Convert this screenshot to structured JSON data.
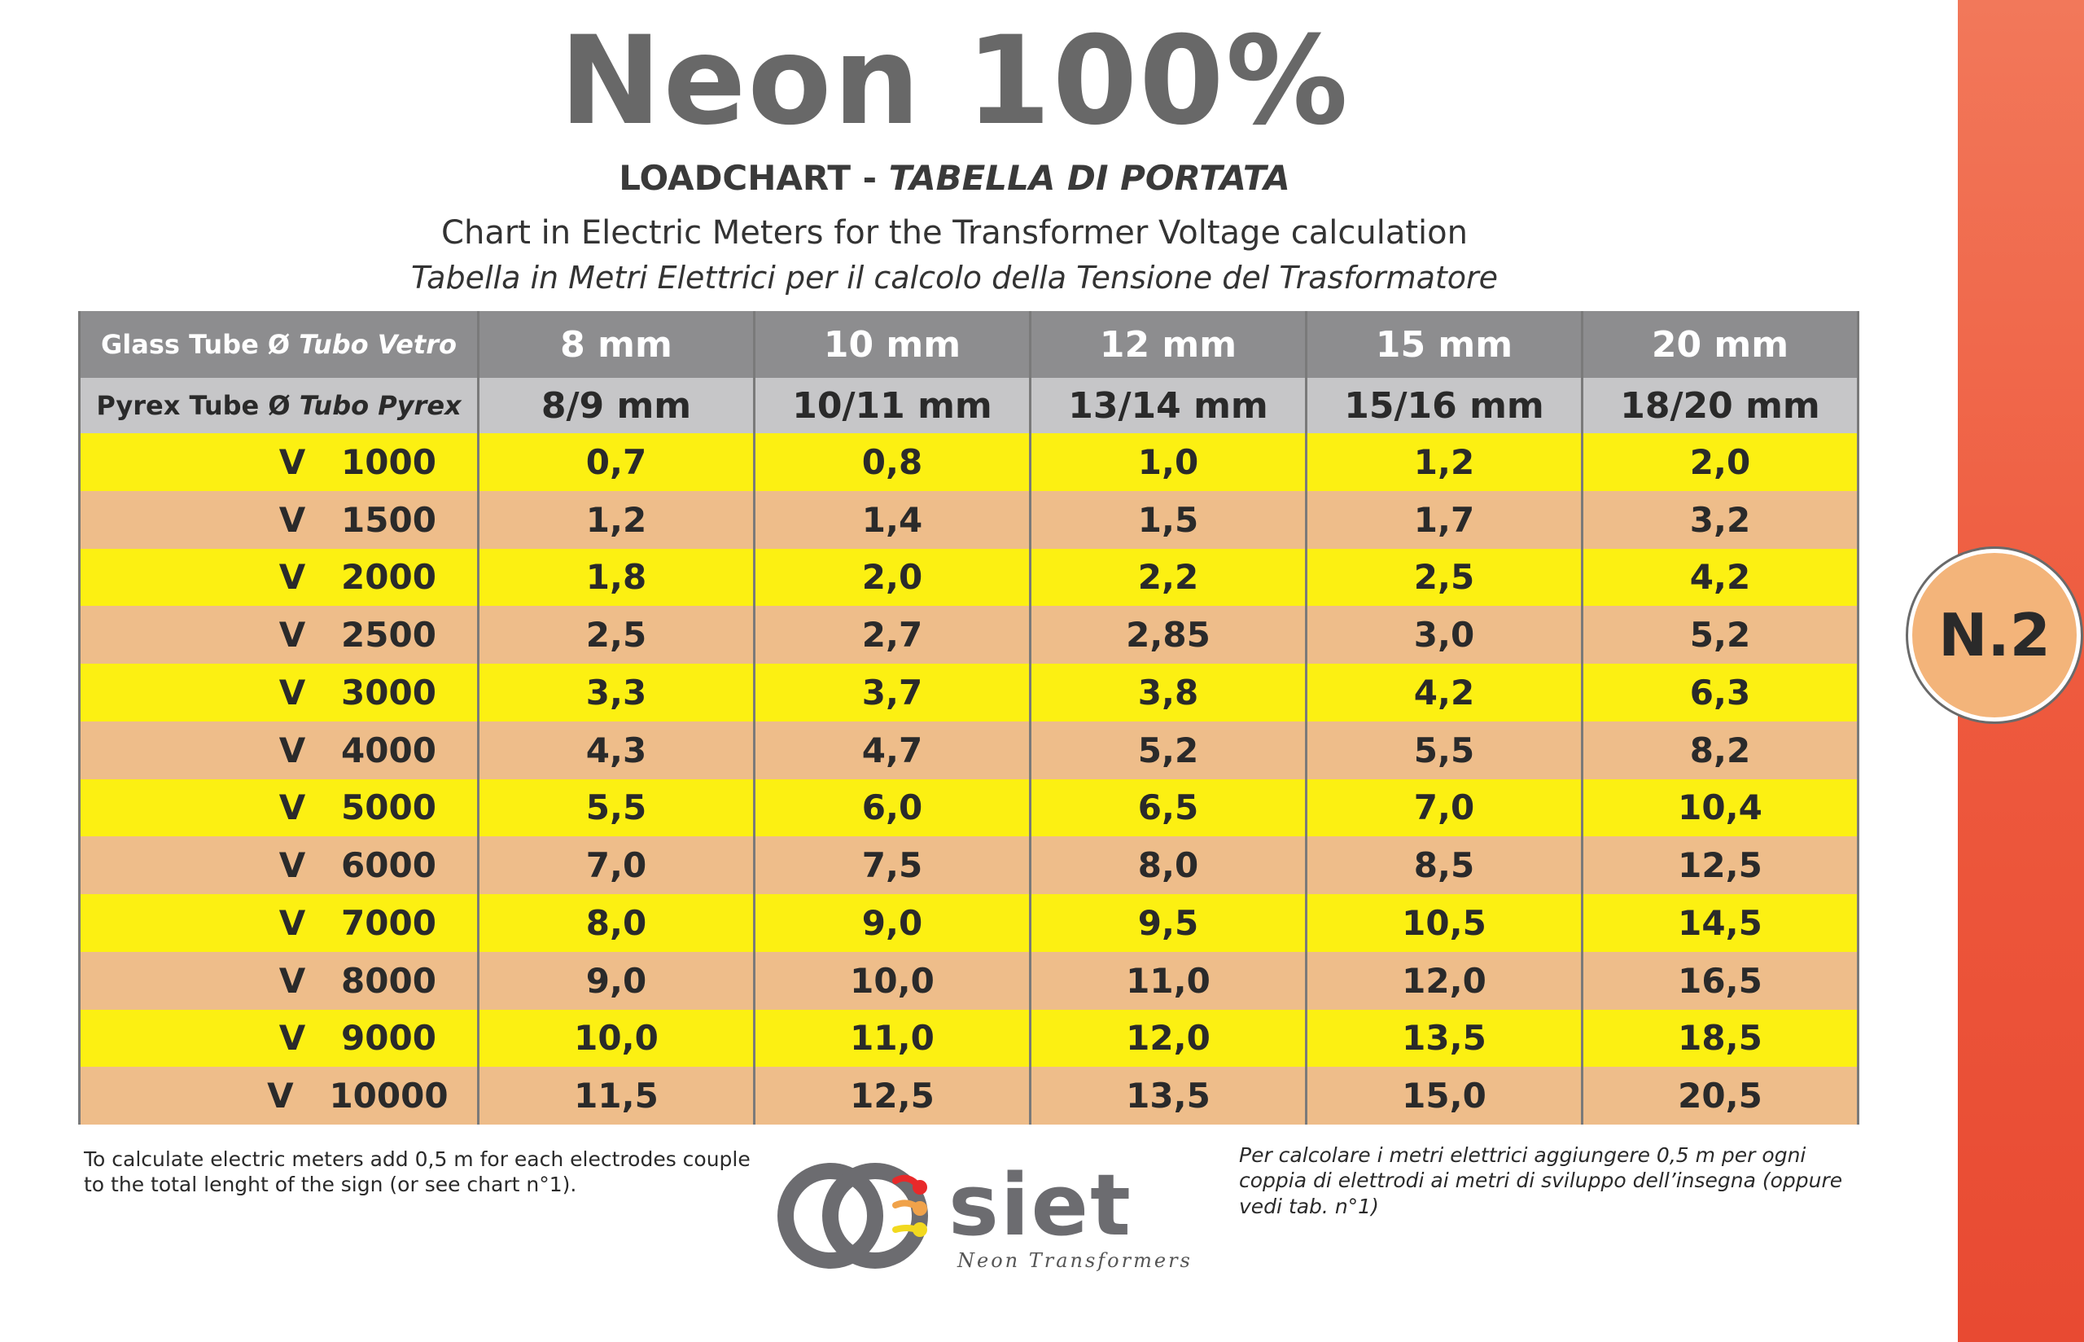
{
  "title": "Neon 100%",
  "subtitle": {
    "main": "LOADCHART -",
    "italic": "TABELLA DI PORTATA"
  },
  "description": {
    "english": "Chart in Electric Meters for the Transformer Voltage calculation",
    "italian": "Tabella in Metri Elettrici per il calcolo della Tensione del Trasformatore"
  },
  "badge": "N.2",
  "table": {
    "glass_label": {
      "main": "Glass Tube Ø",
      "italic": "Tubo Vetro"
    },
    "pyrex_label": {
      "main": "Pyrex Tube Ø",
      "italic": "Tubo Pyrex"
    },
    "glass_sizes": [
      "8 mm",
      "10 mm",
      "12 mm",
      "15 mm",
      "20 mm"
    ],
    "pyrex_sizes": [
      "8/9 mm",
      "10/11 mm",
      "13/14 mm",
      "15/16 mm",
      "18/20 mm"
    ],
    "rows": [
      {
        "prefix": "V",
        "voltage": "1000",
        "values": [
          "0,7",
          "0,8",
          "1,0",
          "1,2",
          "2,0"
        ]
      },
      {
        "prefix": "V",
        "voltage": "1500",
        "values": [
          "1,2",
          "1,4",
          "1,5",
          "1,7",
          "3,2"
        ]
      },
      {
        "prefix": "V",
        "voltage": "2000",
        "values": [
          "1,8",
          "2,0",
          "2,2",
          "2,5",
          "4,2"
        ]
      },
      {
        "prefix": "V",
        "voltage": "2500",
        "values": [
          "2,5",
          "2,7",
          "2,85",
          "3,0",
          "5,2"
        ]
      },
      {
        "prefix": "V",
        "voltage": "3000",
        "values": [
          "3,3",
          "3,7",
          "3,8",
          "4,2",
          "6,3"
        ]
      },
      {
        "prefix": "V",
        "voltage": "4000",
        "values": [
          "4,3",
          "4,7",
          "5,2",
          "5,5",
          "8,2"
        ]
      },
      {
        "prefix": "V",
        "voltage": "5000",
        "values": [
          "5,5",
          "6,0",
          "6,5",
          "7,0",
          "10,4"
        ]
      },
      {
        "prefix": "V",
        "voltage": "6000",
        "values": [
          "7,0",
          "7,5",
          "8,0",
          "8,5",
          "12,5"
        ]
      },
      {
        "prefix": "V",
        "voltage": "7000",
        "values": [
          "8,0",
          "9,0",
          "9,5",
          "10,5",
          "14,5"
        ]
      },
      {
        "prefix": "V",
        "voltage": "8000",
        "values": [
          "9,0",
          "10,0",
          "11,0",
          "12,0",
          "16,5"
        ]
      },
      {
        "prefix": "V",
        "voltage": "9000",
        "values": [
          "10,0",
          "11,0",
          "12,0",
          "13,5",
          "18,5"
        ]
      },
      {
        "prefix": "V",
        "voltage": "10000",
        "values": [
          "11,5",
          "12,5",
          "13,5",
          "15,0",
          "20,5"
        ]
      }
    ]
  },
  "note_english": "To calculate electric meters add 0,5 m for each electrodes couple to the total lenght of the sign (or see chart n°1).",
  "note_italian": "Per calcolare i metri elettrici aggiungere 0,5 m per ogni coppia di elettrodi ai metri di sviluppo dell’insegna (oppure vedi tab. n°1)",
  "logo": {
    "name": "siet",
    "tagline": "Neon Transformers"
  },
  "colors": {
    "yellow_row": "#fcf012",
    "peach_row": "#eebd8a",
    "header_dark": "#8d8d8f",
    "header_light": "#c6c6c8",
    "side_bar": "#ee5a3e",
    "badge": "#f3b47a",
    "title_gray": "#686868"
  }
}
